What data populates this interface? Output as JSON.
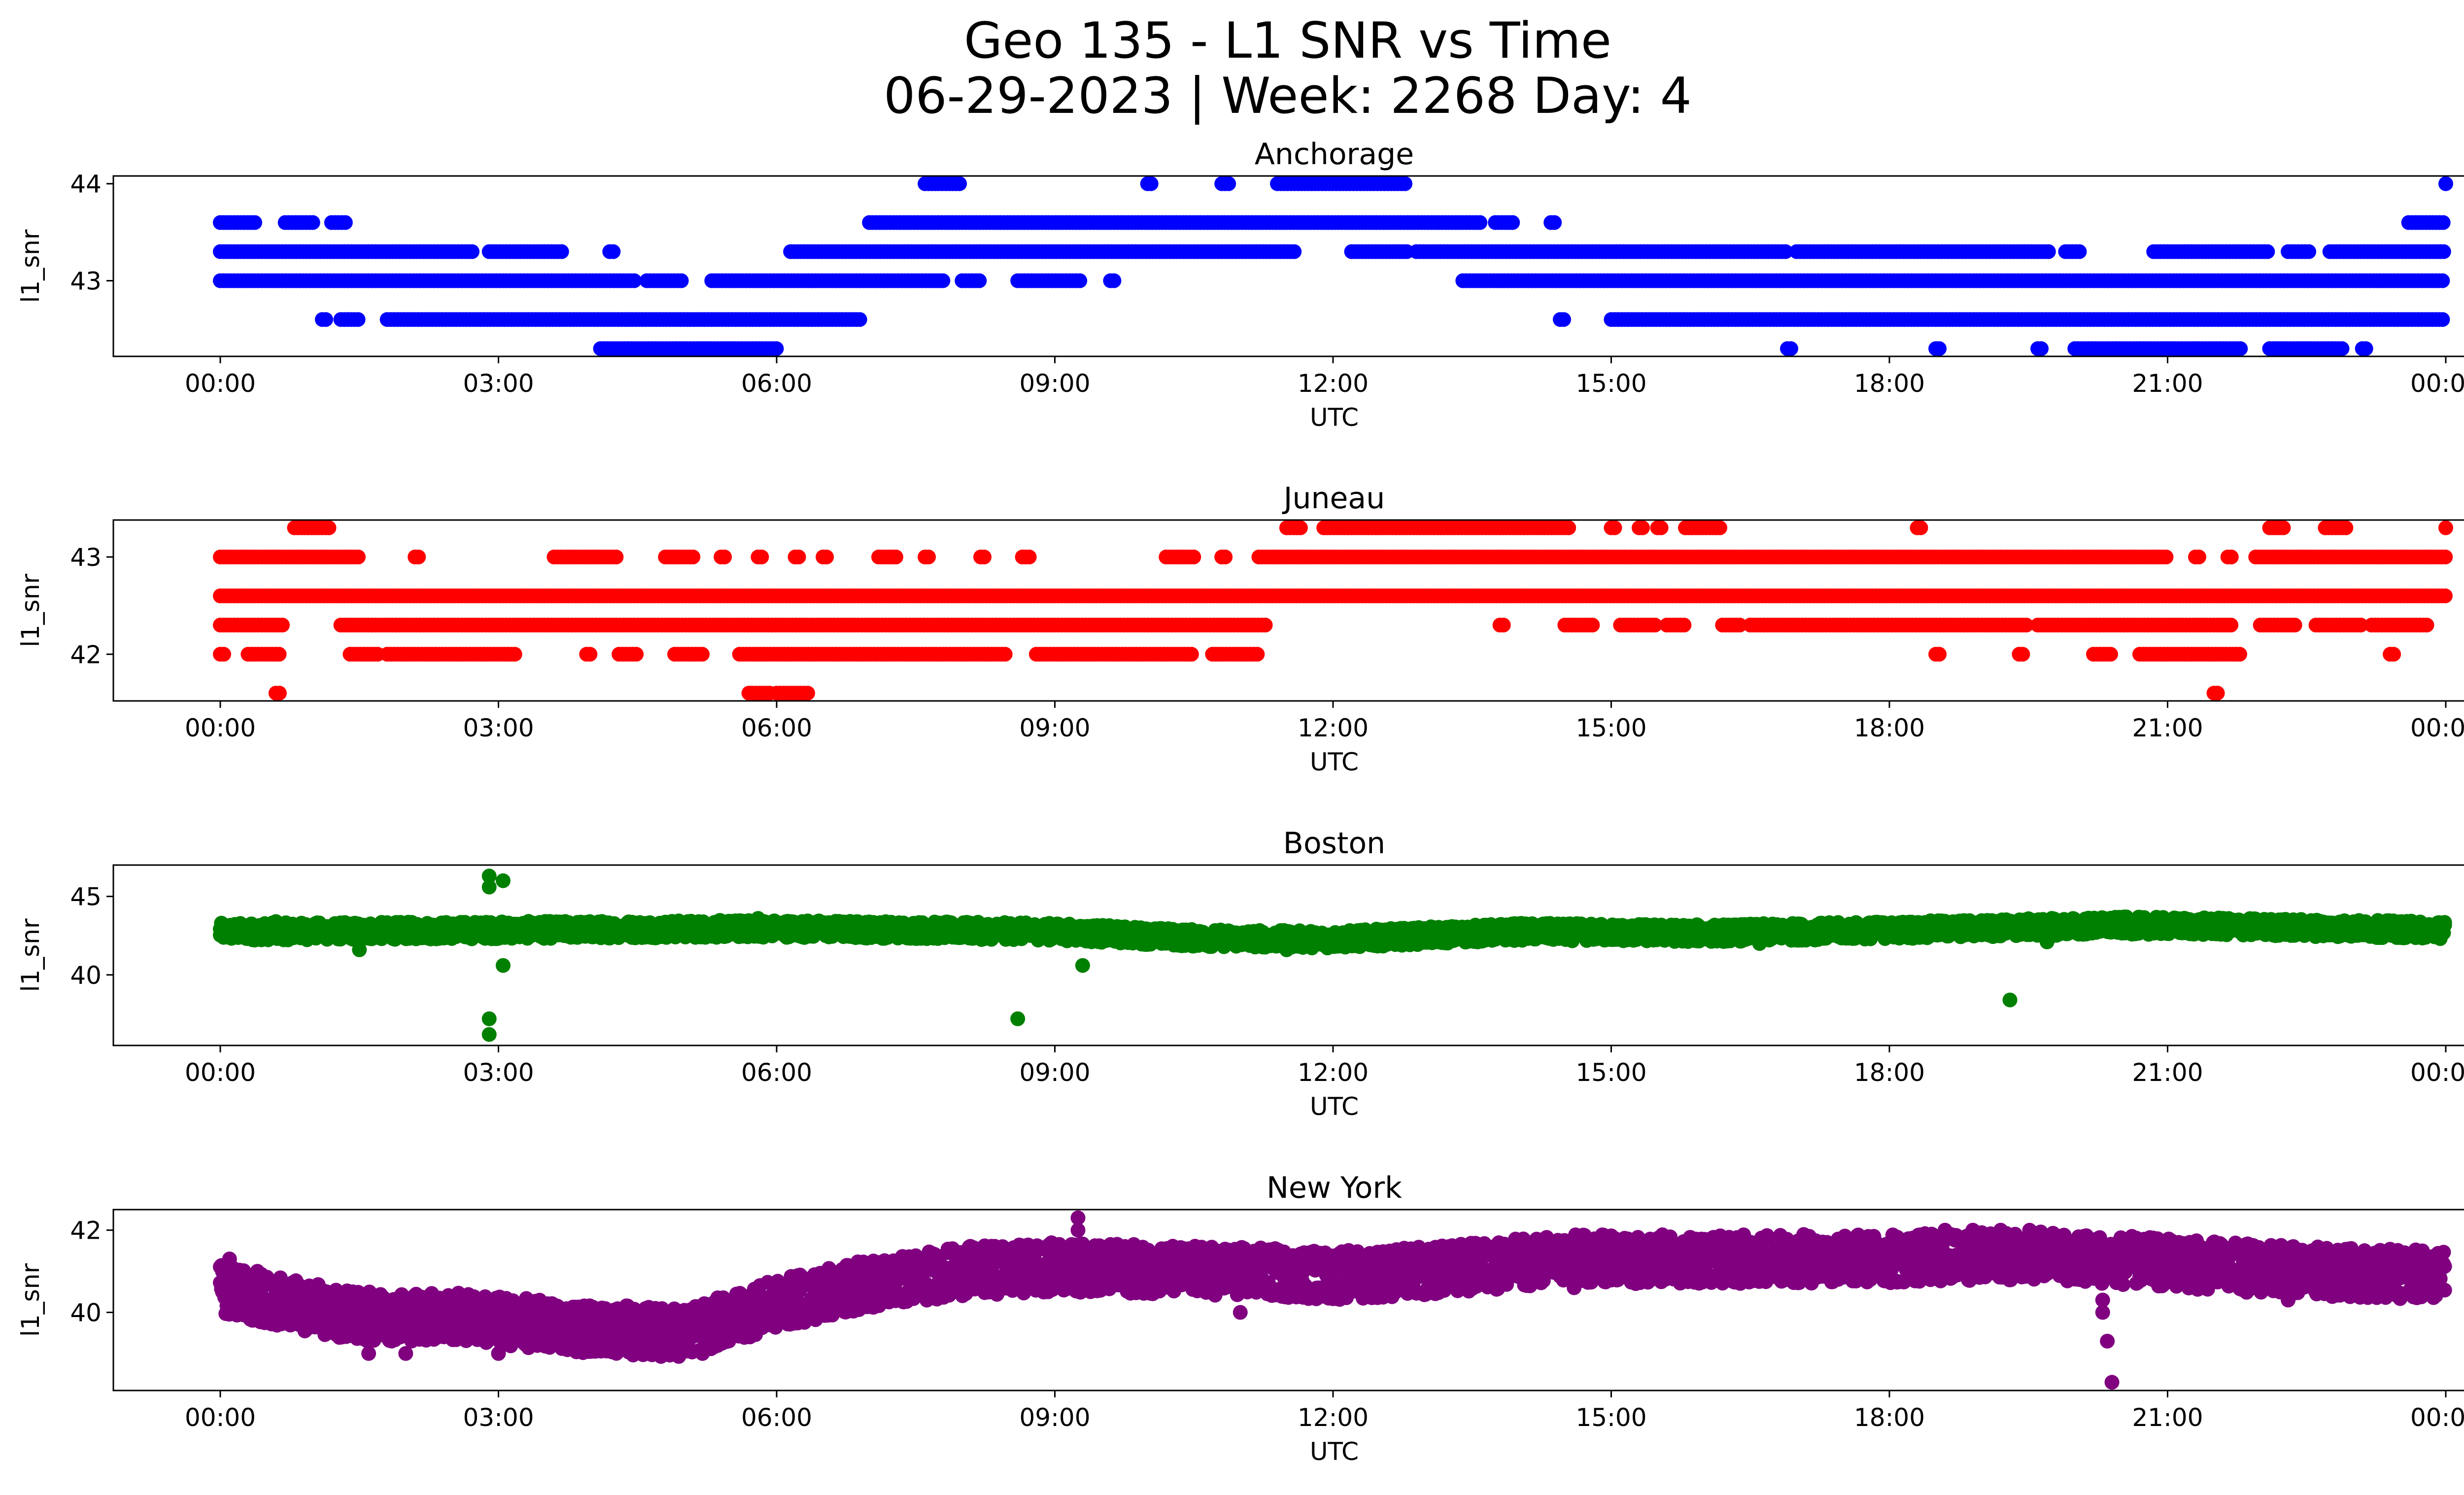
{
  "figure": {
    "title_line1": "Geo 135 - L1 SNR vs Time",
    "title_line2": "06-29-2023 | Week: 2268 Day: 4"
  },
  "chart_data": [
    {
      "type": "scatter",
      "title": "Anchorage",
      "xlabel": "UTC",
      "ylabel": "l1_snr",
      "color": "#0000ff",
      "x_ticks": [
        "00:00",
        "03:00",
        "06:00",
        "09:00",
        "12:00",
        "15:00",
        "18:00",
        "21:00",
        "00:00"
      ],
      "x_range_hours": [
        0,
        24
      ],
      "y_ticks": [
        43,
        44
      ],
      "ylim": [
        42.22,
        44.08
      ],
      "levels": [
        {
          "y": 44.0,
          "ranges": [
            [
              7.6,
              8.0
            ],
            [
              10.0,
              10.05
            ],
            [
              10.8,
              10.9
            ],
            [
              11.4,
              12.8
            ],
            [
              24.0,
              24.0
            ]
          ]
        },
        {
          "y": 43.6,
          "ranges": [
            [
              0.0,
              0.4
            ],
            [
              0.7,
              1.0
            ],
            [
              1.2,
              1.35
            ],
            [
              7.0,
              13.6
            ],
            [
              13.75,
              13.95
            ],
            [
              14.35,
              14.4
            ],
            [
              23.6,
              24.0
            ]
          ]
        },
        {
          "y": 43.3,
          "ranges": [
            [
              0.0,
              2.75
            ],
            [
              2.9,
              3.7
            ],
            [
              4.2,
              4.25
            ],
            [
              6.15,
              11.6
            ],
            [
              12.2,
              12.8
            ],
            [
              12.9,
              16.9
            ],
            [
              17.0,
              19.75
            ],
            [
              19.9,
              20.05
            ],
            [
              20.85,
              22.1
            ],
            [
              22.3,
              22.55
            ],
            [
              22.75,
              24.0
            ]
          ]
        },
        {
          "y": 43.0,
          "ranges": [
            [
              0.0,
              4.5
            ],
            [
              4.6,
              5.0
            ],
            [
              5.3,
              7.8
            ],
            [
              8.0,
              8.2
            ],
            [
              8.6,
              9.3
            ],
            [
              9.6,
              9.65
            ],
            [
              13.4,
              24.0
            ]
          ]
        },
        {
          "y": 42.6,
          "ranges": [
            [
              1.1,
              1.15
            ],
            [
              1.3,
              1.5
            ],
            [
              1.8,
              6.9
            ],
            [
              14.45,
              14.5
            ],
            [
              15.0,
              24.0
            ]
          ]
        },
        {
          "y": 42.3,
          "ranges": [
            [
              4.1,
              6.0
            ],
            [
              16.9,
              16.95
            ],
            [
              18.5,
              18.55
            ],
            [
              19.6,
              19.65
            ],
            [
              20.0,
              21.8
            ],
            [
              22.1,
              22.9
            ],
            [
              23.1,
              23.15
            ]
          ]
        }
      ]
    },
    {
      "type": "scatter",
      "title": "Juneau",
      "xlabel": "UTC",
      "ylabel": "l1_snr",
      "color": "#ff0000",
      "x_ticks": [
        "00:00",
        "03:00",
        "06:00",
        "09:00",
        "12:00",
        "15:00",
        "18:00",
        "21:00",
        "00:00"
      ],
      "x_range_hours": [
        0,
        24
      ],
      "y_ticks": [
        42,
        43
      ],
      "ylim": [
        41.52,
        43.38
      ],
      "levels": [
        {
          "y": 43.3,
          "ranges": [
            [
              0.8,
              1.2
            ],
            [
              11.5,
              11.65
            ],
            [
              11.9,
              14.55
            ],
            [
              15.0,
              15.05
            ],
            [
              15.3,
              15.35
            ],
            [
              15.5,
              15.55
            ],
            [
              15.8,
              16.2
            ],
            [
              18.3,
              18.35
            ],
            [
              22.1,
              22.25
            ],
            [
              22.7,
              22.95
            ],
            [
              24.0,
              24.0
            ]
          ]
        },
        {
          "y": 43.0,
          "ranges": [
            [
              0.0,
              1.5
            ],
            [
              2.1,
              2.15
            ],
            [
              3.6,
              4.3
            ],
            [
              4.8,
              5.1
            ],
            [
              5.4,
              5.45
            ],
            [
              5.8,
              5.85
            ],
            [
              6.2,
              6.25
            ],
            [
              6.5,
              6.55
            ],
            [
              7.1,
              7.3
            ],
            [
              7.6,
              7.65
            ],
            [
              8.2,
              8.25
            ],
            [
              8.65,
              8.75
            ],
            [
              10.2,
              10.5
            ],
            [
              10.8,
              10.85
            ],
            [
              11.2,
              21.0
            ],
            [
              21.3,
              21.35
            ],
            [
              21.65,
              21.7
            ],
            [
              21.95,
              24.0
            ]
          ]
        },
        {
          "y": 42.6,
          "ranges": [
            [
              0.0,
              24.0
            ]
          ]
        },
        {
          "y": 42.3,
          "ranges": [
            [
              0.0,
              0.7
            ],
            [
              1.3,
              11.3
            ],
            [
              13.8,
              13.85
            ],
            [
              14.5,
              14.8
            ],
            [
              15.1,
              15.5
            ],
            [
              15.6,
              15.8
            ],
            [
              16.2,
              16.4
            ],
            [
              16.5,
              19.5
            ],
            [
              19.6,
              21.7
            ],
            [
              22.0,
              22.4
            ],
            [
              22.6,
              23.1
            ],
            [
              23.2,
              23.8
            ]
          ]
        },
        {
          "y": 42.0,
          "ranges": [
            [
              0.0,
              0.05
            ],
            [
              0.3,
              0.65
            ],
            [
              1.4,
              1.7
            ],
            [
              1.8,
              3.2
            ],
            [
              3.95,
              4.0
            ],
            [
              4.3,
              4.5
            ],
            [
              4.9,
              5.2
            ],
            [
              5.6,
              8.5
            ],
            [
              8.8,
              10.5
            ],
            [
              10.7,
              11.2
            ],
            [
              18.5,
              18.55
            ],
            [
              19.4,
              19.45
            ],
            [
              20.2,
              20.4
            ],
            [
              20.7,
              21.8
            ],
            [
              23.4,
              23.45
            ]
          ]
        },
        {
          "y": 41.6,
          "ranges": [
            [
              0.6,
              0.65
            ],
            [
              5.7,
              5.95
            ],
            [
              6.0,
              6.35
            ],
            [
              21.5,
              21.55
            ]
          ]
        }
      ]
    },
    {
      "type": "scatter",
      "title": "Boston",
      "xlabel": "UTC",
      "ylabel": "l1_snr",
      "color": "#008000",
      "x_ticks": [
        "00:00",
        "03:00",
        "06:00",
        "09:00",
        "12:00",
        "15:00",
        "18:00",
        "21:00",
        "00:00"
      ],
      "x_range_hours": [
        0,
        24
      ],
      "y_ticks": [
        40,
        45
      ],
      "ylim": [
        35.5,
        47.0
      ],
      "trend": [
        [
          0,
          42.7
        ],
        [
          3,
          42.8
        ],
        [
          6,
          42.9
        ],
        [
          9,
          42.7
        ],
        [
          10.5,
          42.3
        ],
        [
          12,
          42.2
        ],
        [
          14,
          42.7
        ],
        [
          16,
          42.6
        ],
        [
          18,
          42.8
        ],
        [
          20.5,
          43.1
        ],
        [
          22,
          43.0
        ],
        [
          24,
          42.8
        ]
      ],
      "band": [
        -0.5,
        0.6
      ],
      "outliers": [
        {
          "x": 1.5,
          "y": 41.6
        },
        {
          "x": 2.9,
          "y": 46.3
        },
        {
          "x": 2.9,
          "y": 45.6
        },
        {
          "x": 3.05,
          "y": 46.0
        },
        {
          "x": 2.9,
          "y": 37.2
        },
        {
          "x": 2.9,
          "y": 36.2
        },
        {
          "x": 3.05,
          "y": 40.6
        },
        {
          "x": 8.6,
          "y": 37.2
        },
        {
          "x": 9.3,
          "y": 40.6
        },
        {
          "x": 11.5,
          "y": 41.6
        },
        {
          "x": 16.6,
          "y": 42.0
        },
        {
          "x": 19.3,
          "y": 38.4
        },
        {
          "x": 19.7,
          "y": 42.1
        },
        {
          "x": 20.5,
          "y": 43.6
        },
        {
          "x": 0.6,
          "y": 43.4
        },
        {
          "x": 5.8,
          "y": 43.6
        }
      ]
    },
    {
      "type": "scatter",
      "title": "New York",
      "xlabel": "UTC",
      "ylabel": "l1_snr",
      "color": "#800080",
      "x_ticks": [
        "00:00",
        "03:00",
        "06:00",
        "09:00",
        "12:00",
        "15:00",
        "18:00",
        "21:00",
        "00:00"
      ],
      "x_range_hours": [
        0,
        24
      ],
      "y_ticks": [
        40,
        42
      ],
      "ylim": [
        38.1,
        42.5
      ],
      "trend": [
        [
          0,
          40.6
        ],
        [
          0.5,
          40.3
        ],
        [
          1.5,
          39.9
        ],
        [
          2.5,
          39.9
        ],
        [
          4,
          39.6
        ],
        [
          5,
          39.5
        ],
        [
          6,
          40.2
        ],
        [
          7,
          40.7
        ],
        [
          8,
          41.0
        ],
        [
          9,
          41.1
        ],
        [
          11,
          41.0
        ],
        [
          12,
          40.9
        ],
        [
          13,
          41.0
        ],
        [
          14.5,
          41.3
        ],
        [
          16.5,
          41.3
        ],
        [
          18,
          41.3
        ],
        [
          19.5,
          41.4
        ],
        [
          21,
          41.2
        ],
        [
          22.5,
          41.0
        ],
        [
          24,
          40.9
        ]
      ],
      "band": [
        -0.6,
        0.6
      ],
      "outliers": [
        {
          "x": 0.1,
          "y": 41.0
        },
        {
          "x": 0.1,
          "y": 41.3
        },
        {
          "x": 0.4,
          "y": 41.0
        },
        {
          "x": 1.6,
          "y": 39.0
        },
        {
          "x": 2.0,
          "y": 39.0
        },
        {
          "x": 3.0,
          "y": 39.0
        },
        {
          "x": 4.6,
          "y": 39.0
        },
        {
          "x": 5.2,
          "y": 39.0
        },
        {
          "x": 9.25,
          "y": 42.3
        },
        {
          "x": 9.25,
          "y": 42.0
        },
        {
          "x": 11.0,
          "y": 40.0
        },
        {
          "x": 14.6,
          "y": 40.6
        },
        {
          "x": 18.6,
          "y": 42.0
        },
        {
          "x": 18.9,
          "y": 42.0
        },
        {
          "x": 19.2,
          "y": 42.0
        },
        {
          "x": 20.3,
          "y": 40.0
        },
        {
          "x": 20.35,
          "y": 39.3
        },
        {
          "x": 20.4,
          "y": 38.3
        },
        {
          "x": 20.3,
          "y": 40.3
        },
        {
          "x": 22.3,
          "y": 40.3
        }
      ]
    }
  ]
}
